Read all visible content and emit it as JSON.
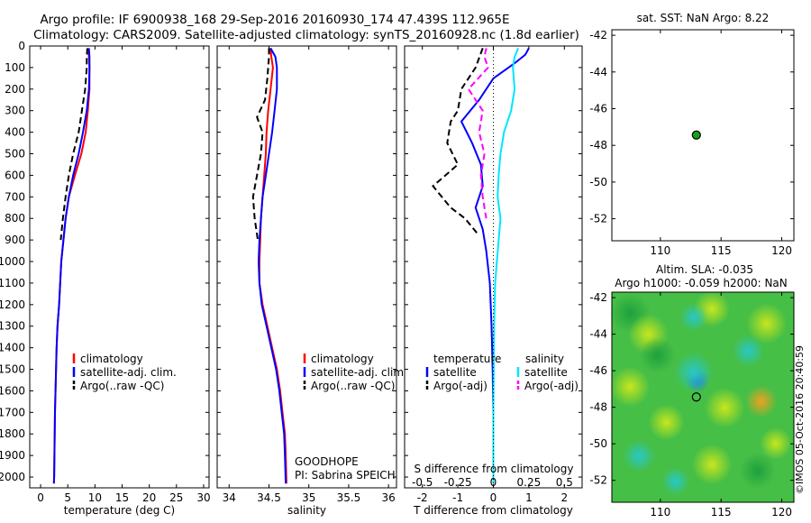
{
  "header": {
    "title_line1": "Argo profile: IF 6900938_168 29-Sep-2016 20160930_174 47.439S 112.965E",
    "title_line2": "Climatology: CARS2009. Satellite-adjusted climatology: synTS_20160928.nc (1.8d earlier)"
  },
  "watermark": "©IMOS 05-Oct-2016 20:40:59",
  "colors": {
    "climatology": "#ff0000",
    "satellite": "#0000ff",
    "argo": "#000000",
    "salinity_satellite": "#00e5ff",
    "salinity_argo": "#ff00ff",
    "marker_fill": "#1aa01a"
  },
  "chart_data": [
    {
      "id": "temperature",
      "type": "line",
      "xlabel": "temperature (deg C)",
      "ylabel": "",
      "xlim": [
        -2,
        31
      ],
      "ylim": [
        2050,
        0
      ],
      "xticks": [
        0,
        5,
        10,
        15,
        20,
        25,
        30
      ],
      "xtick_labels": [
        "0",
        "5",
        "10",
        "15",
        "20",
        "25",
        "30"
      ],
      "yticks": [
        0,
        100,
        200,
        300,
        400,
        500,
        600,
        700,
        800,
        900,
        1000,
        1100,
        1200,
        1300,
        1400,
        1500,
        1600,
        1700,
        1800,
        1900,
        2000
      ],
      "ytick_labels": [
        "0",
        "100",
        "200",
        "300",
        "400",
        "500",
        "600",
        "700",
        "800",
        "900",
        "1000",
        "1100",
        "1200",
        "1300",
        "1400",
        "1500",
        "1600",
        "1700",
        "1800",
        "1900",
        "2000"
      ],
      "legend": [
        {
          "name": "climatology",
          "style": "solid",
          "color": "#ff0000"
        },
        {
          "name": "satellite-adj. clim.",
          "style": "solid",
          "color": "#0000ff"
        },
        {
          "name": "Argo(..raw -QC)",
          "style": "dashed",
          "color": "#000000"
        }
      ],
      "series": [
        {
          "name": "climatology",
          "color": "#ff0000",
          "dash": false,
          "x": [
            8.8,
            8.9,
            9.0,
            9.0,
            8.7,
            8.3,
            7.5,
            6.3,
            5.2,
            4.6,
            4.2,
            3.8,
            3.4,
            3.1,
            2.95,
            2.85,
            2.75,
            2.65,
            2.6,
            2.55,
            2.5,
            2.45
          ],
          "y": [
            10,
            50,
            100,
            200,
            300,
            400,
            500,
            600,
            700,
            800,
            900,
            1000,
            1200,
            1300,
            1400,
            1500,
            1600,
            1700,
            1800,
            1900,
            2000,
            2030
          ]
        },
        {
          "name": "satellite-adj. clim.",
          "color": "#0000ff",
          "dash": false,
          "x": [
            8.9,
            9.0,
            9.0,
            8.9,
            8.5,
            7.8,
            7.0,
            6.0,
            5.2,
            4.6,
            4.2,
            3.8,
            3.4,
            3.1,
            2.95,
            2.85,
            2.75,
            2.65,
            2.6,
            2.55,
            2.5,
            2.45
          ],
          "y": [
            10,
            50,
            100,
            200,
            300,
            400,
            500,
            600,
            700,
            800,
            900,
            1000,
            1200,
            1300,
            1400,
            1500,
            1600,
            1700,
            1800,
            1900,
            2000,
            2030
          ]
        },
        {
          "name": "Argo(..raw -QC)",
          "color": "#000000",
          "dash": true,
          "x": [
            8.6,
            8.5,
            8.5,
            8.2,
            7.6,
            7.0,
            6.0,
            5.2,
            4.6,
            4.1,
            3.7
          ],
          "y": [
            10,
            50,
            100,
            200,
            300,
            400,
            500,
            600,
            700,
            800,
            900
          ]
        }
      ]
    },
    {
      "id": "salinity",
      "type": "line",
      "xlabel": "salinity",
      "ylabel": "",
      "xlim": [
        33.85,
        36.1
      ],
      "ylim": [
        2050,
        0
      ],
      "xticks": [
        34,
        34.5,
        35,
        35.5,
        36
      ],
      "xtick_labels": [
        "34",
        "34.5",
        "35",
        "35.5",
        "36"
      ],
      "legend": [
        {
          "name": "climatology",
          "style": "solid",
          "color": "#ff0000"
        },
        {
          "name": "satellite-adj. clim.",
          "style": "solid",
          "color": "#0000ff"
        },
        {
          "name": "Argo(..raw -QC)",
          "style": "dashed",
          "color": "#000000"
        }
      ],
      "annotations": [
        "GOODHOPE",
        "PI: Sabrina SPEICH"
      ],
      "series": [
        {
          "name": "climatology",
          "color": "#ff0000",
          "dash": false,
          "x": [
            34.52,
            34.53,
            34.55,
            34.52,
            34.49,
            34.47,
            34.46,
            34.44,
            34.42,
            34.4,
            34.39,
            34.38,
            34.38,
            34.42,
            34.48,
            34.54,
            34.6,
            34.64,
            34.67,
            34.7,
            34.71,
            34.72
          ],
          "y": [
            10,
            50,
            100,
            200,
            300,
            400,
            500,
            600,
            700,
            800,
            900,
            1000,
            1100,
            1200,
            1300,
            1400,
            1500,
            1600,
            1700,
            1800,
            1900,
            2030
          ]
        },
        {
          "name": "satellite-adj. clim.",
          "color": "#0000ff",
          "dash": false,
          "x": [
            34.52,
            34.58,
            34.6,
            34.6,
            34.57,
            34.54,
            34.5,
            34.46,
            34.42,
            34.4,
            34.38,
            34.37,
            34.38,
            34.41,
            34.47,
            34.53,
            34.59,
            34.63,
            34.66,
            34.69,
            34.7,
            34.71
          ],
          "y": [
            10,
            50,
            100,
            200,
            300,
            400,
            500,
            600,
            700,
            800,
            900,
            1000,
            1100,
            1200,
            1300,
            1400,
            1500,
            1600,
            1700,
            1800,
            1900,
            2030
          ]
        },
        {
          "name": "Argo(..raw -QC)",
          "color": "#000000",
          "dash": true,
          "x": [
            34.5,
            34.5,
            34.48,
            34.45,
            34.35,
            34.42,
            34.4,
            34.35,
            34.3,
            34.32,
            34.36
          ],
          "y": [
            10,
            50,
            150,
            250,
            330,
            400,
            500,
            600,
            700,
            800,
            900
          ]
        }
      ]
    },
    {
      "id": "difference",
      "type": "line",
      "xlabel": "T difference from climatology",
      "top_axis_label": "S difference from climatology",
      "xlim": [
        -2.5,
        2.5
      ],
      "ylim": [
        2050,
        0
      ],
      "xticks": [
        -2,
        -1,
        0,
        1,
        2
      ],
      "xtick_labels": [
        "-2",
        "-1",
        "0",
        "1",
        "2"
      ],
      "sticks": [
        -0.5,
        -0.25,
        0,
        0.25,
        0.5
      ],
      "stick_labels": [
        "-0.5",
        "-0.25",
        "0",
        "0.25",
        "0.5"
      ],
      "legend_headers": [
        "temperature",
        "salinity"
      ],
      "legend": [
        {
          "name": "satellite",
          "style": "solid",
          "color": "#0000ff",
          "group": "temperature"
        },
        {
          "name": "Argo(-adj)",
          "style": "dashed",
          "color": "#000000",
          "group": "temperature"
        },
        {
          "name": "satellite",
          "style": "solid",
          "color": "#00e5ff",
          "group": "salinity"
        },
        {
          "name": "Argo(-adj)",
          "style": "dashed",
          "color": "#ff00ff",
          "group": "salinity"
        }
      ],
      "series": [
        {
          "name": "T satellite",
          "color": "#0000ff",
          "dash": false,
          "x": [
            1.0,
            0.9,
            0.6,
            0.0,
            -0.4,
            -0.9,
            -0.6,
            -0.35,
            -0.3,
            -0.5,
            -0.3,
            -0.2,
            -0.1,
            -0.05,
            -0.02,
            0,
            0,
            0
          ],
          "y": [
            10,
            40,
            80,
            150,
            250,
            350,
            450,
            550,
            650,
            750,
            850,
            950,
            1100,
            1300,
            1500,
            1700,
            1900,
            2030
          ]
        },
        {
          "name": "T Argo(-adj)",
          "color": "#000000",
          "dash": true,
          "x": [
            -0.3,
            -0.5,
            -0.9,
            -1.0,
            -1.2,
            -1.3,
            -1.0,
            -1.7,
            -1.2,
            -0.8,
            -0.4
          ],
          "y": [
            10,
            100,
            200,
            300,
            350,
            450,
            550,
            650,
            750,
            800,
            880
          ]
        },
        {
          "name": "S satellite",
          "color": "#00e5ff",
          "dash": false,
          "x": [
            0.7,
            0.6,
            0.55,
            0.6,
            0.5,
            0.3,
            0.2,
            0.15,
            0.12,
            0.2,
            0.15,
            0.1,
            0.05,
            0.02,
            0.01,
            0,
            0,
            0
          ],
          "y": [
            10,
            50,
            100,
            200,
            300,
            400,
            500,
            600,
            700,
            800,
            900,
            1000,
            1100,
            1300,
            1500,
            1700,
            1900,
            2030
          ]
        },
        {
          "name": "S Argo(-adj)",
          "color": "#ff00ff",
          "dash": true,
          "x": [
            -0.2,
            -0.25,
            -0.15,
            -0.7,
            -0.3,
            -0.4,
            -0.25,
            -0.35,
            -0.3,
            -0.2
          ],
          "y": [
            10,
            50,
            100,
            200,
            300,
            400,
            500,
            600,
            700,
            800
          ]
        }
      ]
    },
    {
      "id": "sst_map",
      "type": "scatter",
      "title": "sat. SST: NaN Argo: 8.22",
      "xlim": [
        106,
        121
      ],
      "ylim": [
        -53.2,
        -41.7
      ],
      "xticks": [
        110,
        115,
        120
      ],
      "xtick_labels": [
        "110",
        "115",
        "120"
      ],
      "yticks": [
        -42,
        -44,
        -46,
        -48,
        -50,
        -52
      ],
      "ytick_labels": [
        "-42",
        "-44",
        "-46",
        "-48",
        "-50",
        "-52"
      ],
      "points": [
        {
          "x": 112.965,
          "y": -47.439
        }
      ]
    },
    {
      "id": "sla_map",
      "type": "heatmap",
      "title_line1": "Altim. SLA: -0.035",
      "title_line2": "Argo h1000: -0.059 h2000: NaN",
      "xlim": [
        106,
        121
      ],
      "ylim": [
        -53.2,
        -41.7
      ],
      "xticks": [
        110,
        115,
        120
      ],
      "xtick_labels": [
        "110",
        "115",
        "120"
      ],
      "yticks": [
        -42,
        -44,
        -46,
        -48,
        -50,
        -52
      ],
      "ytick_labels": [
        "-42",
        "-44",
        "-46",
        "-48",
        "-50",
        "-52"
      ],
      "points": [
        {
          "x": 112.965,
          "y": -47.439
        }
      ]
    }
  ]
}
